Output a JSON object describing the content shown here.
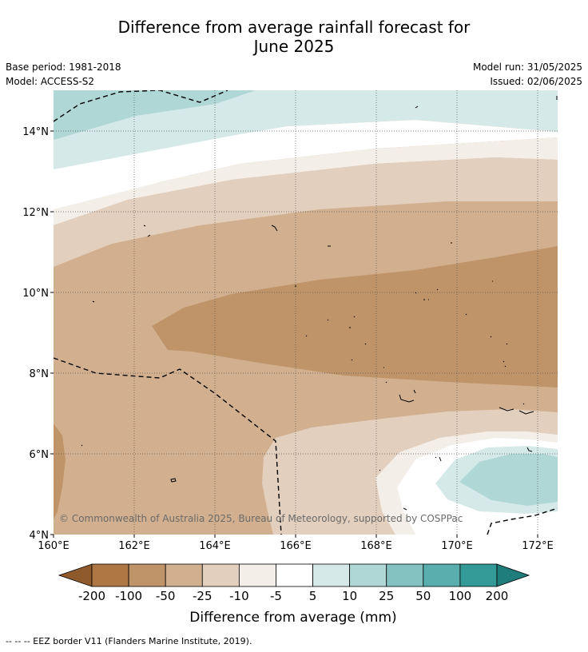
{
  "title_line1": "Difference from average rainfall forecast for",
  "title_line2": "June 2025",
  "base_period": "Base period: 1981-2018",
  "model": "Model: ACCESS-S2",
  "model_run": "Model run: 31/05/2025",
  "issued": "Issued: 02/06/2025",
  "copyright": "© Commonwealth of Australia 2025, Bureau of Meteorology, supported by COSPPac",
  "x_ticks": [
    "160°E",
    "162°E",
    "164°E",
    "166°E",
    "168°E",
    "170°E",
    "172°E"
  ],
  "y_ticks": [
    "14°N",
    "12°N",
    "10°N",
    "8°N",
    "6°N",
    "4°N"
  ],
  "colorbar": {
    "title": "Difference from average (mm)",
    "labels": [
      "-200",
      "-100",
      "-50",
      "-25",
      "-10",
      "-5",
      "5",
      "10",
      "25",
      "50",
      "100",
      "200"
    ],
    "colors": [
      "#8f5a2c",
      "#ae7744",
      "#bf9469",
      "#d2b08f",
      "#e3cfbd",
      "#f3eee8",
      "#ffffff",
      "#d5e9e8",
      "#aed7d6",
      "#84c2c1",
      "#5aaeae",
      "#339a98",
      "#1f7d7c"
    ]
  },
  "footnote": "-- -- -- EEZ border V11 (Flanders Marine Institute, 2019)."
}
